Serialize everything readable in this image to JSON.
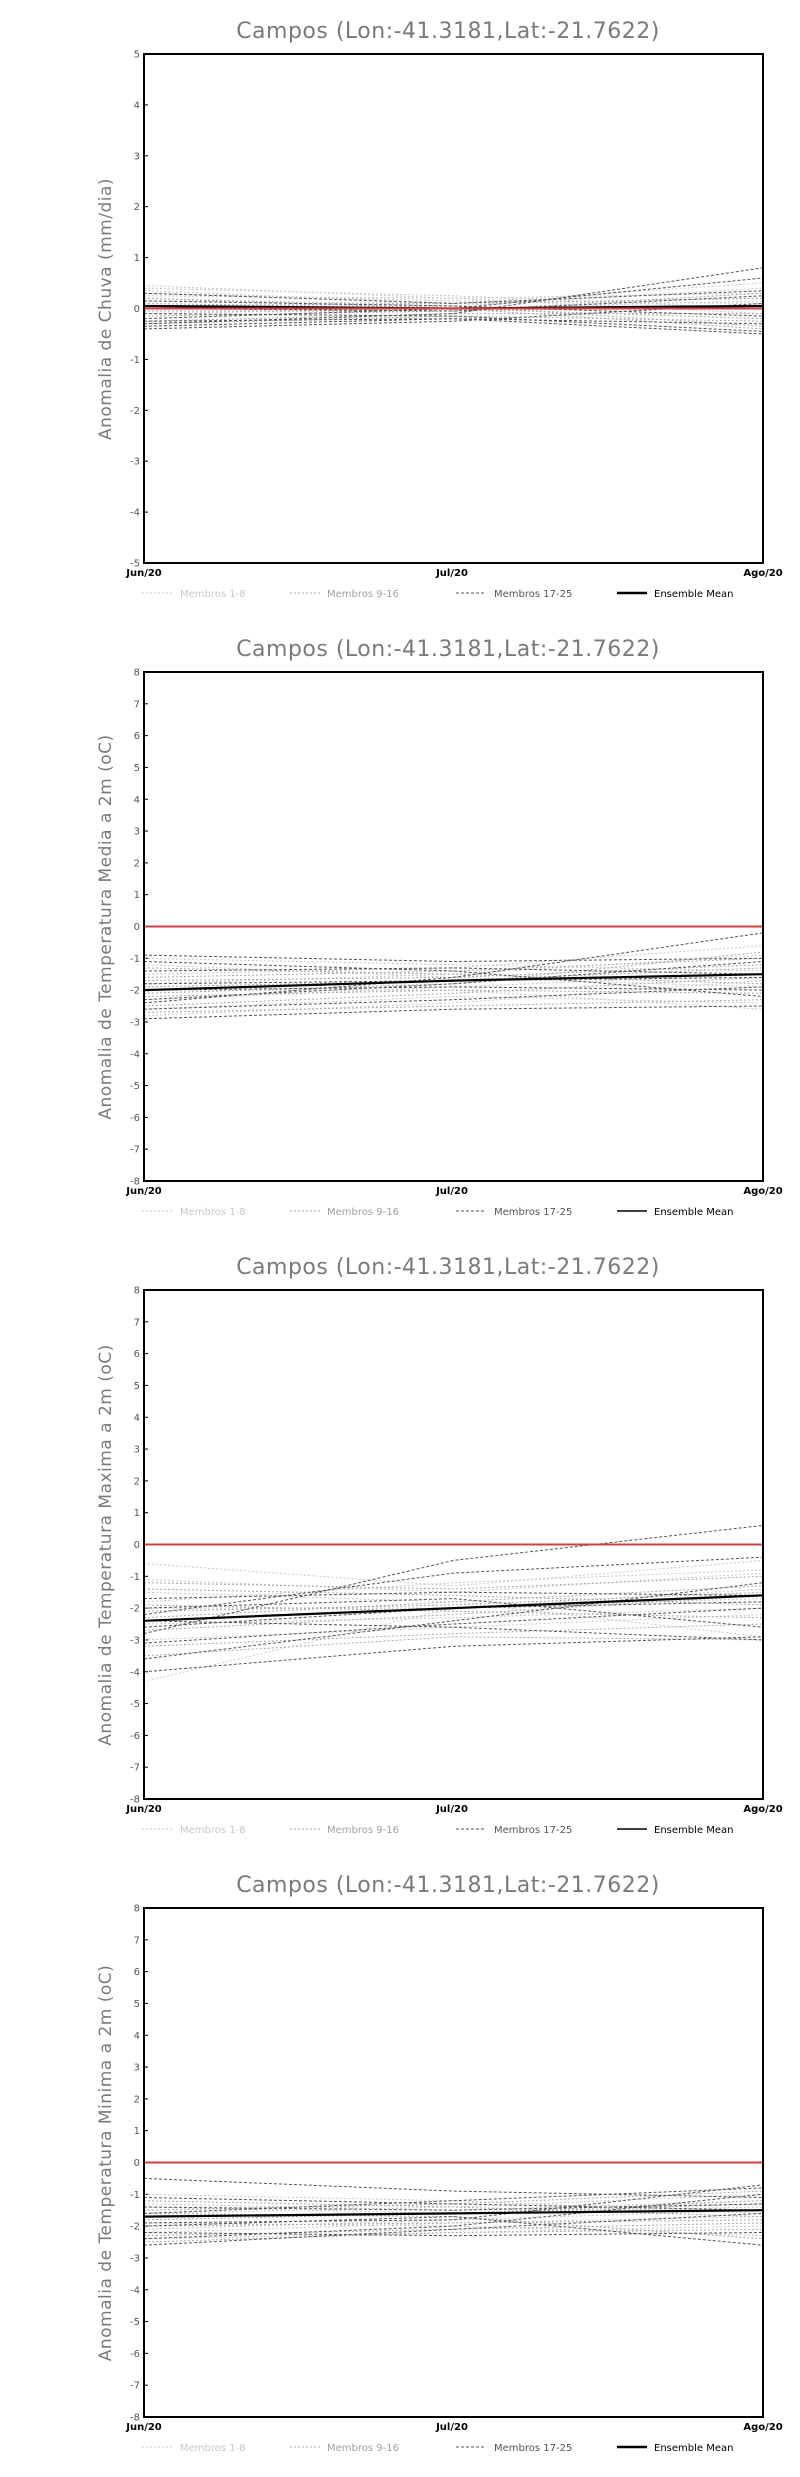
{
  "charts": [
    {
      "id": "chuva",
      "title": "Campos (Lon:-41.3181,Lat:-21.7622)",
      "ylabel": "Anomalia de Chuva (mm/dia)",
      "yticks": [
        "5",
        "4",
        "3",
        "2",
        "1",
        "0",
        "-1",
        "-2",
        "-3",
        "-4",
        "-5"
      ],
      "xticks": [
        "Jun/20",
        "Jul/20",
        "Ago/20"
      ]
    },
    {
      "id": "tmed",
      "title": "Campos (Lon:-41.3181,Lat:-21.7622)",
      "ylabel": "Anomalia de Temperatura Media a 2m (oC)",
      "yticks": [
        "8",
        "7",
        "6",
        "5",
        "4",
        "3",
        "2",
        "1",
        "0",
        "-1",
        "-2",
        "-3",
        "-4",
        "-5",
        "-6",
        "-7",
        "-8"
      ],
      "xticks": [
        "Jun/20",
        "Jul/20",
        "Ago/20"
      ]
    },
    {
      "id": "tmax",
      "title": "Campos (Lon:-41.3181,Lat:-21.7622)",
      "ylabel": "Anomalia de Temperatura Maxima a 2m (oC)",
      "yticks": [
        "8",
        "7",
        "6",
        "5",
        "4",
        "3",
        "2",
        "1",
        "0",
        "-1",
        "-2",
        "-3",
        "-4",
        "-5",
        "-6",
        "-7",
        "-8"
      ],
      "xticks": [
        "Jun/20",
        "Jul/20",
        "Ago/20"
      ]
    },
    {
      "id": "tmin",
      "title": "Campos (Lon:-41.3181,Lat:-21.7622)",
      "ylabel": "Anomalia de Temperatura Minima a 2m (oC)",
      "yticks": [
        "8",
        "7",
        "6",
        "5",
        "4",
        "3",
        "2",
        "1",
        "0",
        "-1",
        "-2",
        "-3",
        "-4",
        "-5",
        "-6",
        "-7",
        "-8"
      ],
      "xticks": [
        "Jun/20",
        "Jul/20",
        "Ago/20"
      ]
    }
  ],
  "legend": {
    "m1": "Membros 1-8",
    "m2": "Membros 9-16",
    "m3": "Membros 17-25",
    "mean": "Ensemble Mean"
  },
  "colors": {
    "zero_line": "#d04040",
    "members_1_8": "#c8c8c8",
    "members_9_16": "#a8a8a8",
    "members_17_25": "#555555",
    "ensemble_mean": "#000000"
  },
  "chart_data": [
    {
      "type": "line",
      "title": "Campos (Lon:-41.3181,Lat:-21.7622)",
      "ylabel": "Anomalia de Chuva (mm/dia)",
      "x": [
        "Jun/20",
        "Jul/20",
        "Ago/20"
      ],
      "ylim": [
        -5,
        5
      ],
      "reference_line": 0,
      "series": [
        {
          "name": "Membros 1-8",
          "lines": [
            [
              0.45,
              0.2,
              0.3
            ],
            [
              0.35,
              0.1,
              0.2
            ],
            [
              0.3,
              0.15,
              0.1
            ],
            [
              0.2,
              0.05,
              0.4
            ],
            [
              0.25,
              0.2,
              -0.1
            ],
            [
              0.15,
              0.1,
              0.5
            ],
            [
              0.4,
              0.25,
              0.0
            ],
            [
              -0.1,
              0.0,
              0.15
            ]
          ]
        },
        {
          "name": "Membros 9-16",
          "lines": [
            [
              0.1,
              0.0,
              -0.2
            ],
            [
              -0.15,
              -0.05,
              0.3
            ],
            [
              0.0,
              0.05,
              -0.35
            ],
            [
              -0.25,
              -0.1,
              -0.1
            ],
            [
              0.05,
              0.1,
              0.2
            ],
            [
              -0.3,
              -0.15,
              -0.25
            ],
            [
              0.2,
              0.0,
              -0.4
            ],
            [
              -0.05,
              -0.05,
              0.05
            ]
          ]
        },
        {
          "name": "Membros 17-25",
          "lines": [
            [
              -0.3,
              -0.1,
              0.8
            ],
            [
              -0.2,
              0.0,
              0.6
            ],
            [
              -0.35,
              -0.2,
              -0.5
            ],
            [
              0.3,
              0.1,
              0.35
            ],
            [
              -0.1,
              -0.15,
              -0.45
            ],
            [
              0.0,
              -0.05,
              0.25
            ],
            [
              -0.25,
              -0.2,
              -0.3
            ],
            [
              0.15,
              0.05,
              -0.15
            ],
            [
              -0.4,
              -0.25,
              0.1
            ]
          ]
        },
        {
          "name": "Ensemble Mean",
          "values": [
            0.05,
            0.0,
            0.05
          ]
        }
      ]
    },
    {
      "type": "line",
      "title": "Campos (Lon:-41.3181,Lat:-21.7622)",
      "ylabel": "Anomalia de Temperatura Media a 2m (oC)",
      "x": [
        "Jun/20",
        "Jul/20",
        "Ago/20"
      ],
      "ylim": [
        -8,
        8
      ],
      "reference_line": 0,
      "series": [
        {
          "name": "Membros 1-8",
          "lines": [
            [
              -1.5,
              -1.3,
              -0.6
            ],
            [
              -2.3,
              -1.9,
              -1.5
            ],
            [
              -1.0,
              -1.2,
              -1.4
            ],
            [
              -2.6,
              -2.2,
              -2.4
            ],
            [
              -1.8,
              -1.5,
              -0.9
            ],
            [
              -2.0,
              -2.0,
              -2.6
            ],
            [
              -1.2,
              -1.6,
              -1.9
            ],
            [
              -2.8,
              -2.4,
              -1.7
            ]
          ]
        },
        {
          "name": "Membros 9-16",
          "lines": [
            [
              -1.9,
              -1.7,
              -1.3
            ],
            [
              -2.2,
              -2.0,
              -2.1
            ],
            [
              -1.6,
              -1.4,
              -1.0
            ],
            [
              -2.5,
              -2.1,
              -1.6
            ],
            [
              -1.3,
              -1.5,
              -1.8
            ],
            [
              -2.7,
              -2.5,
              -2.3
            ],
            [
              -1.7,
              -1.6,
              -1.2
            ],
            [
              -2.1,
              -1.8,
              -0.8
            ]
          ]
        },
        {
          "name": "Membros 17-25",
          "lines": [
            [
              -2.4,
              -1.6,
              -0.2
            ],
            [
              -0.9,
              -1.1,
              -1.0
            ],
            [
              -2.9,
              -2.6,
              -2.5
            ],
            [
              -1.4,
              -1.3,
              -1.5
            ],
            [
              -2.0,
              -1.9,
              -2.0
            ],
            [
              -2.3,
              -1.8,
              -1.1
            ],
            [
              -1.1,
              -1.4,
              -2.2
            ],
            [
              -2.6,
              -2.3,
              -1.9
            ],
            [
              -1.8,
              -1.7,
              -1.6
            ]
          ]
        },
        {
          "name": "Ensemble Mean",
          "values": [
            -2.0,
            -1.7,
            -1.5
          ]
        }
      ]
    },
    {
      "type": "line",
      "title": "Campos (Lon:-41.3181,Lat:-21.7622)",
      "ylabel": "Anomalia de Temperatura Maxima a 2m (oC)",
      "x": [
        "Jun/20",
        "Jul/20",
        "Ago/20"
      ],
      "ylim": [
        -8,
        8
      ],
      "reference_line": 0,
      "series": [
        {
          "name": "Membros 1-8",
          "lines": [
            [
              -0.6,
              -1.3,
              -0.5
            ],
            [
              -4.3,
              -2.0,
              -1.4
            ],
            [
              -1.5,
              -1.8,
              -2.9
            ],
            [
              -2.5,
              -2.3,
              -2.0
            ],
            [
              -1.1,
              -1.5,
              -0.9
            ],
            [
              -3.0,
              -2.6,
              -2.2
            ],
            [
              -2.0,
              -2.0,
              -1.7
            ],
            [
              -1.8,
              -1.2,
              -0.8
            ]
          ]
        },
        {
          "name": "Membros 9-16",
          "lines": [
            [
              -2.3,
              -1.8,
              -1.3
            ],
            [
              -3.2,
              -2.8,
              -2.5
            ],
            [
              -1.4,
              -1.6,
              -1.9
            ],
            [
              -2.7,
              -2.2,
              -1.6
            ],
            [
              -1.9,
              -2.1,
              -2.3
            ],
            [
              -3.5,
              -2.9,
              -3.0
            ],
            [
              -1.2,
              -1.4,
              -1.0
            ],
            [
              -2.1,
              -1.9,
              -1.5
            ]
          ]
        },
        {
          "name": "Membros 17-25",
          "lines": [
            [
              -4.0,
              -3.2,
              -2.9
            ],
            [
              -2.8,
              -0.5,
              0.6
            ],
            [
              -2.2,
              -0.9,
              -0.4
            ],
            [
              -3.6,
              -2.4,
              -1.2
            ],
            [
              -1.7,
              -1.5,
              -1.6
            ],
            [
              -2.4,
              -2.6,
              -3.0
            ],
            [
              -3.1,
              -2.5,
              -2.0
            ],
            [
              -2.6,
              -2.0,
              -1.8
            ],
            [
              -2.0,
              -1.7,
              -2.6
            ]
          ]
        },
        {
          "name": "Ensemble Mean",
          "values": [
            -2.4,
            -2.0,
            -1.6
          ]
        }
      ]
    },
    {
      "type": "line",
      "title": "Campos (Lon:-41.3181,Lat:-21.7622)",
      "ylabel": "Anomalia de Temperatura Minima a 2m (oC)",
      "x": [
        "Jun/20",
        "Jul/20",
        "Ago/20"
      ],
      "ylim": [
        -8,
        8
      ],
      "reference_line": 0,
      "series": [
        {
          "name": "Membros 1-8",
          "lines": [
            [
              -1.3,
              -1.5,
              -1.2
            ],
            [
              -2.2,
              -1.9,
              -1.7
            ],
            [
              -1.0,
              -1.2,
              -1.6
            ],
            [
              -2.4,
              -2.2,
              -2.0
            ],
            [
              -1.6,
              -1.4,
              -1.0
            ],
            [
              -1.9,
              -2.0,
              -2.3
            ],
            [
              -1.4,
              -1.6,
              -1.4
            ],
            [
              -2.1,
              -1.8,
              -1.5
            ]
          ]
        },
        {
          "name": "Membros 9-16",
          "lines": [
            [
              -1.7,
              -1.6,
              -1.3
            ],
            [
              -2.3,
              -2.1,
              -1.9
            ],
            [
              -1.5,
              -1.3,
              -0.9
            ],
            [
              -2.0,
              -1.9,
              -1.8
            ],
            [
              -1.2,
              -1.4,
              -1.7
            ],
            [
              -2.5,
              -2.2,
              -2.1
            ],
            [
              -1.8,
              -1.6,
              -1.2
            ],
            [
              -1.6,
              -1.7,
              -2.4
            ]
          ]
        },
        {
          "name": "Membros 17-25",
          "lines": [
            [
              -0.5,
              -0.9,
              -1.1
            ],
            [
              -2.4,
              -2.0,
              -1.0
            ],
            [
              -1.1,
              -1.3,
              -1.5
            ],
            [
              -2.0,
              -1.7,
              -2.6
            ],
            [
              -1.4,
              -1.5,
              -1.3
            ],
            [
              -1.9,
              -1.8,
              -0.7
            ],
            [
              -2.2,
              -2.3,
              -2.2
            ],
            [
              -1.6,
              -1.2,
              -0.8
            ],
            [
              -2.6,
              -2.1,
              -1.6
            ]
          ]
        },
        {
          "name": "Ensemble Mean",
          "values": [
            -1.7,
            -1.6,
            -1.5
          ]
        }
      ]
    }
  ]
}
